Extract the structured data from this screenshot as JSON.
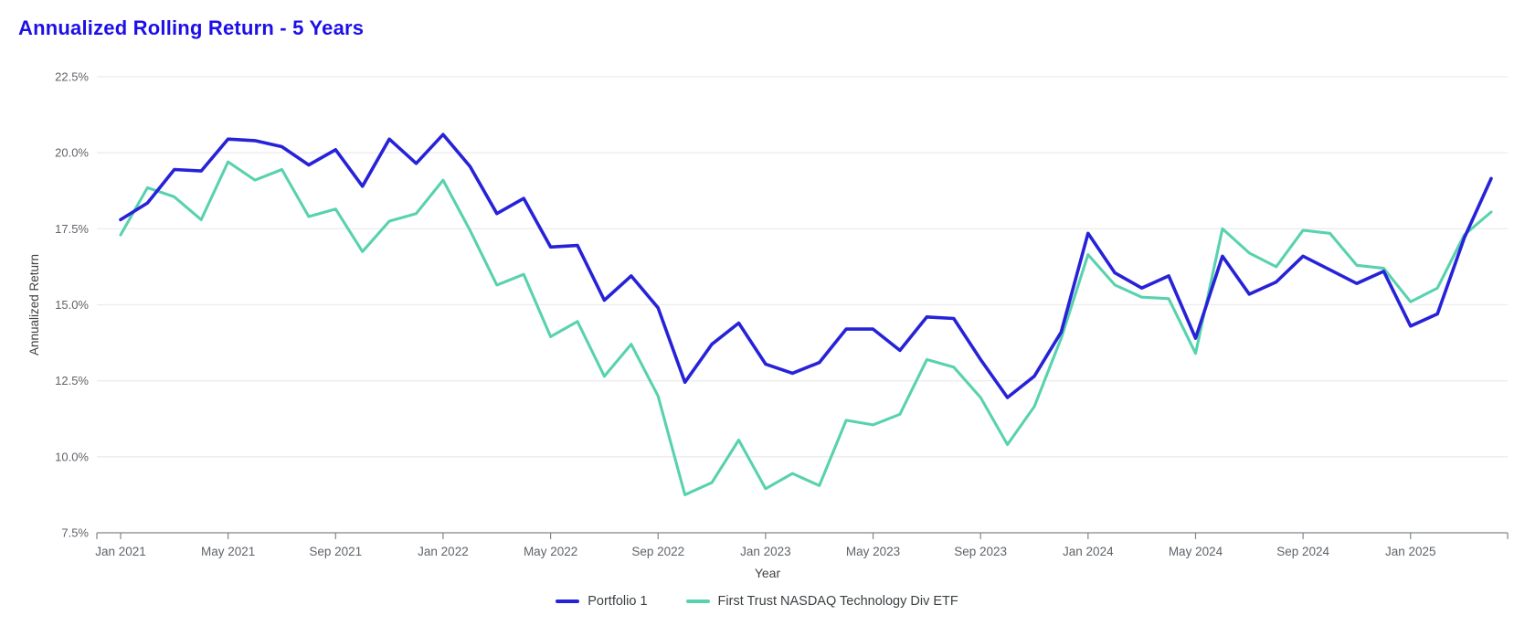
{
  "title": "Annualized Rolling Return - 5 Years",
  "colors": {
    "title": "#1c0fe8",
    "portfolio": "#2722d8",
    "etf": "#58d2ae",
    "grid": "#ececec",
    "axis_line": "#80868b",
    "tick_text": "#5f6368",
    "axis_title_text": "#424242",
    "legend_text": "#3c4043"
  },
  "axes": {
    "y_label": "Annualized Return",
    "x_label": "Year",
    "y_ticks": [
      "22.5%",
      "20.0%",
      "17.5%",
      "15.0%",
      "12.5%",
      "10.0%",
      "7.5%"
    ],
    "x_ticks": [
      "Jan 2021",
      "May 2021",
      "Sep 2021",
      "Jan 2022",
      "May 2022",
      "Sep 2022",
      "Jan 2023",
      "May 2023",
      "Sep 2023",
      "Jan 2024",
      "May 2024",
      "Sep 2024",
      "Jan 2025"
    ]
  },
  "legend": [
    {
      "label": "Portfolio 1",
      "color": "#2722d8"
    },
    {
      "label": "First Trust NASDAQ Technology Div ETF",
      "color": "#58d2ae"
    }
  ],
  "chart_data": {
    "type": "line",
    "title": "Annualized Rolling Return - 5 Years",
    "xlabel": "Year",
    "ylabel": "Annualized Return",
    "ylim": [
      7.5,
      22.5
    ],
    "y_tick_step": 2.5,
    "grid": "horizontal",
    "legend_position": "bottom",
    "x_tick_every_months": 4,
    "x": [
      "Jan 2021",
      "Feb 2021",
      "Mar 2021",
      "Apr 2021",
      "May 2021",
      "Jun 2021",
      "Jul 2021",
      "Aug 2021",
      "Sep 2021",
      "Oct 2021",
      "Nov 2021",
      "Dec 2021",
      "Jan 2022",
      "Feb 2022",
      "Mar 2022",
      "Apr 2022",
      "May 2022",
      "Jun 2022",
      "Jul 2022",
      "Aug 2022",
      "Sep 2022",
      "Oct 2022",
      "Nov 2022",
      "Dec 2022",
      "Jan 2023",
      "Feb 2023",
      "Mar 2023",
      "Apr 2023",
      "May 2023",
      "Jun 2023",
      "Jul 2023",
      "Aug 2023",
      "Sep 2023",
      "Oct 2023",
      "Nov 2023",
      "Dec 2023",
      "Jan 2024",
      "Feb 2024",
      "Mar 2024",
      "Apr 2024",
      "May 2024",
      "Jun 2024",
      "Jul 2024",
      "Aug 2024",
      "Sep 2024",
      "Oct 2024",
      "Nov 2024",
      "Dec 2024",
      "Jan 2025",
      "Feb 2025",
      "Mar 2025",
      "Apr 2025"
    ],
    "series": [
      {
        "name": "Portfolio 1",
        "color": "#2722d8",
        "unit": "%",
        "values": [
          17.8,
          18.35,
          19.45,
          19.4,
          20.45,
          20.4,
          20.2,
          19.6,
          20.1,
          18.9,
          20.45,
          19.65,
          20.6,
          19.55,
          18.0,
          18.5,
          16.9,
          16.95,
          15.15,
          15.95,
          14.9,
          12.45,
          13.7,
          14.4,
          13.05,
          12.75,
          13.1,
          14.2,
          14.2,
          13.5,
          14.6,
          14.55,
          13.2,
          11.95,
          12.65,
          14.1,
          17.35,
          16.05,
          15.55,
          15.95,
          13.9,
          16.6,
          15.35,
          15.75,
          16.6,
          16.15,
          15.7,
          16.1,
          14.3,
          14.7,
          17.2,
          19.15
        ]
      },
      {
        "name": "First Trust NASDAQ Technology Div ETF",
        "color": "#58d2ae",
        "unit": "%",
        "values": [
          17.3,
          18.85,
          18.55,
          17.8,
          19.7,
          19.1,
          19.45,
          17.9,
          18.15,
          16.75,
          17.75,
          18.0,
          19.1,
          17.45,
          15.65,
          16.0,
          13.95,
          14.45,
          12.65,
          13.7,
          12.0,
          8.75,
          9.15,
          10.55,
          8.95,
          9.45,
          9.05,
          11.2,
          11.05,
          11.4,
          13.2,
          12.95,
          11.95,
          10.4,
          11.65,
          13.9,
          16.65,
          15.65,
          15.25,
          15.2,
          13.4,
          17.5,
          16.7,
          16.25,
          17.45,
          17.35,
          16.3,
          16.2,
          15.1,
          15.55,
          17.3,
          18.05
        ]
      }
    ]
  }
}
